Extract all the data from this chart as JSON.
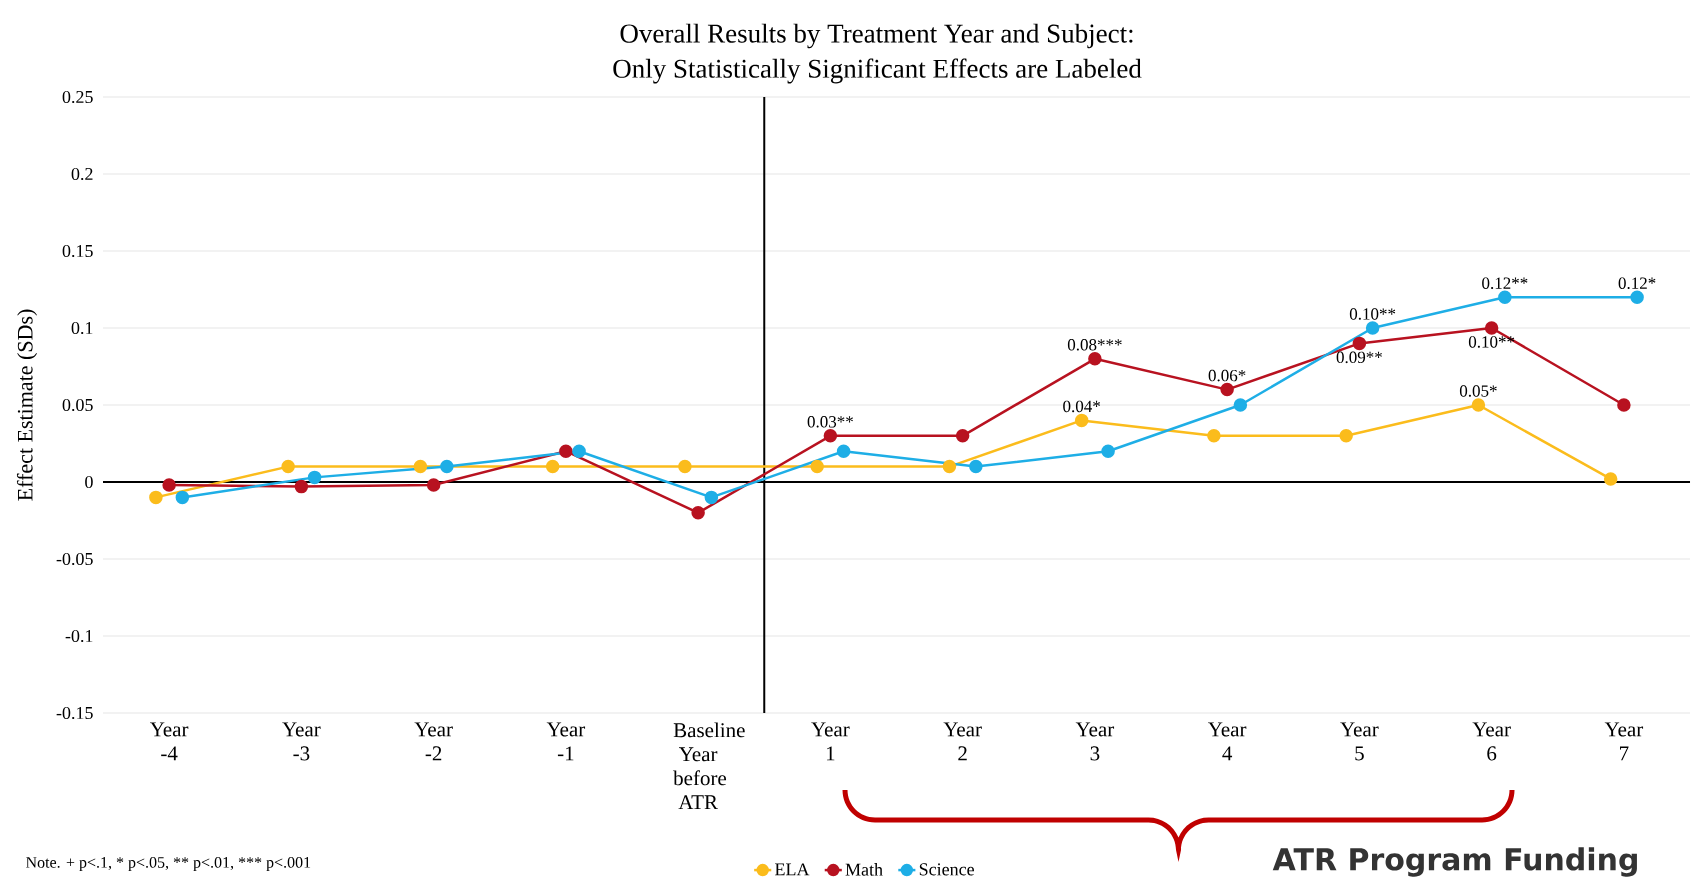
{
  "chart_data": {
    "type": "line",
    "title": "Overall Results by Treatment Year and Subject:",
    "subtitle": "Only Statistically Significant Effects are Labeled",
    "ylabel": "Effect Estimate (SDs)",
    "categories": [
      "Year -4",
      "Year -3",
      "Year -2",
      "Year -1",
      "Baseline Year before ATR",
      "Year 1",
      "Year 2",
      "Year 3",
      "Year 4",
      "Year 5",
      "Year 6",
      "Year 7"
    ],
    "series": [
      {
        "name": "ELA",
        "color": "#fbbc1c",
        "values": [
          -0.01,
          0.01,
          0.01,
          0.01,
          0.01,
          0.01,
          0.01,
          0.04,
          0.03,
          0.03,
          0.05,
          0.002
        ],
        "value_labels": [
          null,
          null,
          null,
          null,
          null,
          null,
          null,
          "0.04*",
          null,
          null,
          "0.05*",
          null
        ]
      },
      {
        "name": "Math",
        "color": "#b81220",
        "values": [
          -0.002,
          -0.003,
          -0.002,
          0.02,
          -0.02,
          0.03,
          0.03,
          0.08,
          0.06,
          0.09,
          0.1,
          0.05
        ],
        "value_labels": [
          null,
          null,
          null,
          null,
          null,
          "0.03**",
          null,
          "0.08***",
          "0.06*",
          "0.09**",
          "0.10**",
          null
        ]
      },
      {
        "name": "Science",
        "color": "#1eaee6",
        "values": [
          -0.01,
          0.003,
          0.01,
          0.02,
          -0.01,
          0.02,
          0.01,
          0.02,
          0.05,
          0.1,
          0.12,
          0.12
        ],
        "value_labels": [
          null,
          null,
          null,
          null,
          null,
          null,
          null,
          null,
          null,
          "0.10**",
          "0.12**",
          "0.12*"
        ]
      }
    ],
    "ylim": [
      -0.15,
      0.25
    ],
    "yticks": [
      -0.15,
      -0.1,
      -0.05,
      0,
      0.05,
      0.1,
      0.15,
      0.2,
      0.25
    ],
    "annotations": [
      "Note. + p<.1, * p<.05,  ** p<.01, *** p<.001",
      "ATR Program Funding"
    ],
    "grid": "y",
    "legend": "bottom",
    "marker": "circle",
    "line_style": "solid"
  }
}
